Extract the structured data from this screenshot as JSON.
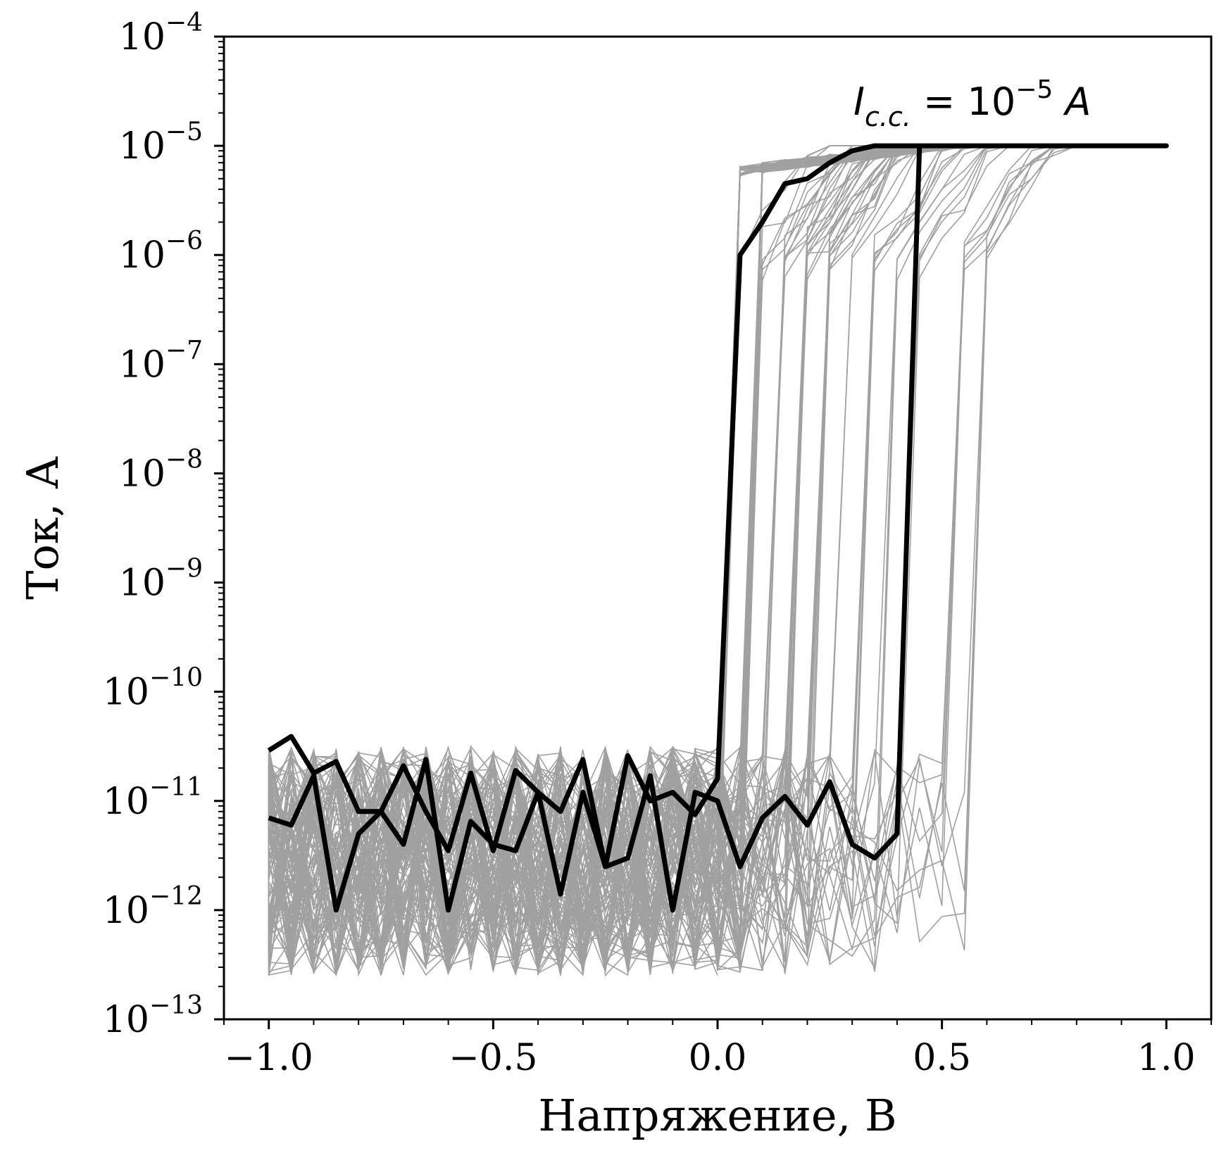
{
  "chart_data": {
    "type": "line",
    "xlabel": "Напряжение, В",
    "ylabel": "Ток, А",
    "xlim": [
      -1.1,
      1.1
    ],
    "ylim": [
      1e-13,
      0.0001
    ],
    "yscale": "log",
    "grid": false,
    "x_ticks": [
      {
        "value": -1.0,
        "label": "−1.0"
      },
      {
        "value": -0.5,
        "label": "−0.5"
      },
      {
        "value": 0.0,
        "label": "0.0"
      },
      {
        "value": 0.5,
        "label": "0.5"
      },
      {
        "value": 1.0,
        "label": "1.0"
      }
    ],
    "y_ticks": [
      {
        "value": 0.0001,
        "base": "10",
        "exp": "−4"
      },
      {
        "value": 1e-05,
        "base": "10",
        "exp": "−5"
      },
      {
        "value": 1e-06,
        "base": "10",
        "exp": "−6"
      },
      {
        "value": 1e-07,
        "base": "10",
        "exp": "−7"
      },
      {
        "value": 1e-08,
        "base": "10",
        "exp": "−8"
      },
      {
        "value": 1e-09,
        "base": "10",
        "exp": "−9"
      },
      {
        "value": 1e-10,
        "base": "10",
        "exp": "−10"
      },
      {
        "value": 1e-11,
        "base": "10",
        "exp": "−11"
      },
      {
        "value": 1e-12,
        "base": "10",
        "exp": "−12"
      },
      {
        "value": 1e-13,
        "base": "10",
        "exp": "−13"
      }
    ],
    "annotation": {
      "symbol": "I",
      "subscript": "c.c.",
      "equals": " = ",
      "base": "10",
      "exp": "−5",
      "unit": "A",
      "x": 0.3,
      "y": 1.6e-05
    },
    "colors": {
      "highlight": "#000000",
      "background_curves": "#a0a0a0"
    },
    "compliance_current": 1e-05,
    "highlighted_series": {
      "x": [
        -1.0,
        -0.95,
        -0.9,
        -0.85,
        -0.8,
        -0.75,
        -0.7,
        -0.65,
        -0.6,
        -0.55,
        -0.5,
        -0.45,
        -0.4,
        -0.35,
        -0.3,
        -0.25,
        -0.2,
        -0.15,
        -0.1,
        -0.05,
        0.0,
        0.05,
        0.1,
        0.15,
        0.2,
        0.25,
        0.3,
        0.35,
        0.4,
        0.45,
        0.5,
        0.55,
        0.6,
        0.65,
        0.7,
        0.75,
        0.8,
        0.85,
        0.9,
        0.95,
        1.0,
        1.0,
        0.95,
        0.9,
        0.85,
        0.8,
        0.75,
        0.7,
        0.65,
        0.6,
        0.55,
        0.5,
        0.45,
        0.4,
        0.35,
        0.3,
        0.25,
        0.2,
        0.15,
        0.1,
        0.05,
        0.0,
        -0.05,
        -0.1,
        -0.15,
        -0.2,
        -0.25,
        -0.3,
        -0.35,
        -0.4,
        -0.45,
        -0.5,
        -0.55,
        -0.6,
        -0.65,
        -0.7,
        -0.75,
        -0.8,
        -0.85,
        -0.9,
        -0.95,
        -1.0
      ],
      "y": [
        7e-12,
        6e-12,
        1.7e-11,
        1e-12,
        5e-12,
        8e-12,
        2.1e-11,
        8e-12,
        3.5e-12,
        1.8e-11,
        3.5e-12,
        1.9e-11,
        1.2e-11,
        8e-12,
        2.4e-11,
        2.5e-12,
        2.6e-11,
        1e-11,
        1.2e-11,
        7.5e-12,
        1.6e-11,
        1e-06,
        2e-06,
        4.5e-06,
        5e-06,
        7e-06,
        9e-06,
        1e-05,
        1e-05,
        1e-05,
        1e-05,
        1e-05,
        1e-05,
        1e-05,
        1e-05,
        1e-05,
        1e-05,
        1e-05,
        1e-05,
        1e-05,
        1e-05,
        1e-05,
        1e-05,
        1e-05,
        1e-05,
        1e-05,
        1e-05,
        1e-05,
        1e-05,
        1e-05,
        1e-05,
        1e-05,
        1e-05,
        5e-12,
        3e-12,
        4e-12,
        1.5e-11,
        6e-12,
        1.1e-11,
        7e-12,
        2.5e-12,
        1e-11,
        1.2e-11,
        1e-12,
        1.7e-11,
        3e-12,
        2.5e-12,
        1.2e-11,
        1.4e-12,
        1.2e-11,
        3.5e-12,
        4e-12,
        6.5e-12,
        1e-12,
        2.4e-11,
        4e-12,
        8e-12,
        8e-12,
        2.3e-11,
        1.8e-11,
        3.9e-11,
        2.9e-11
      ]
    },
    "background_series_count": 60
  }
}
